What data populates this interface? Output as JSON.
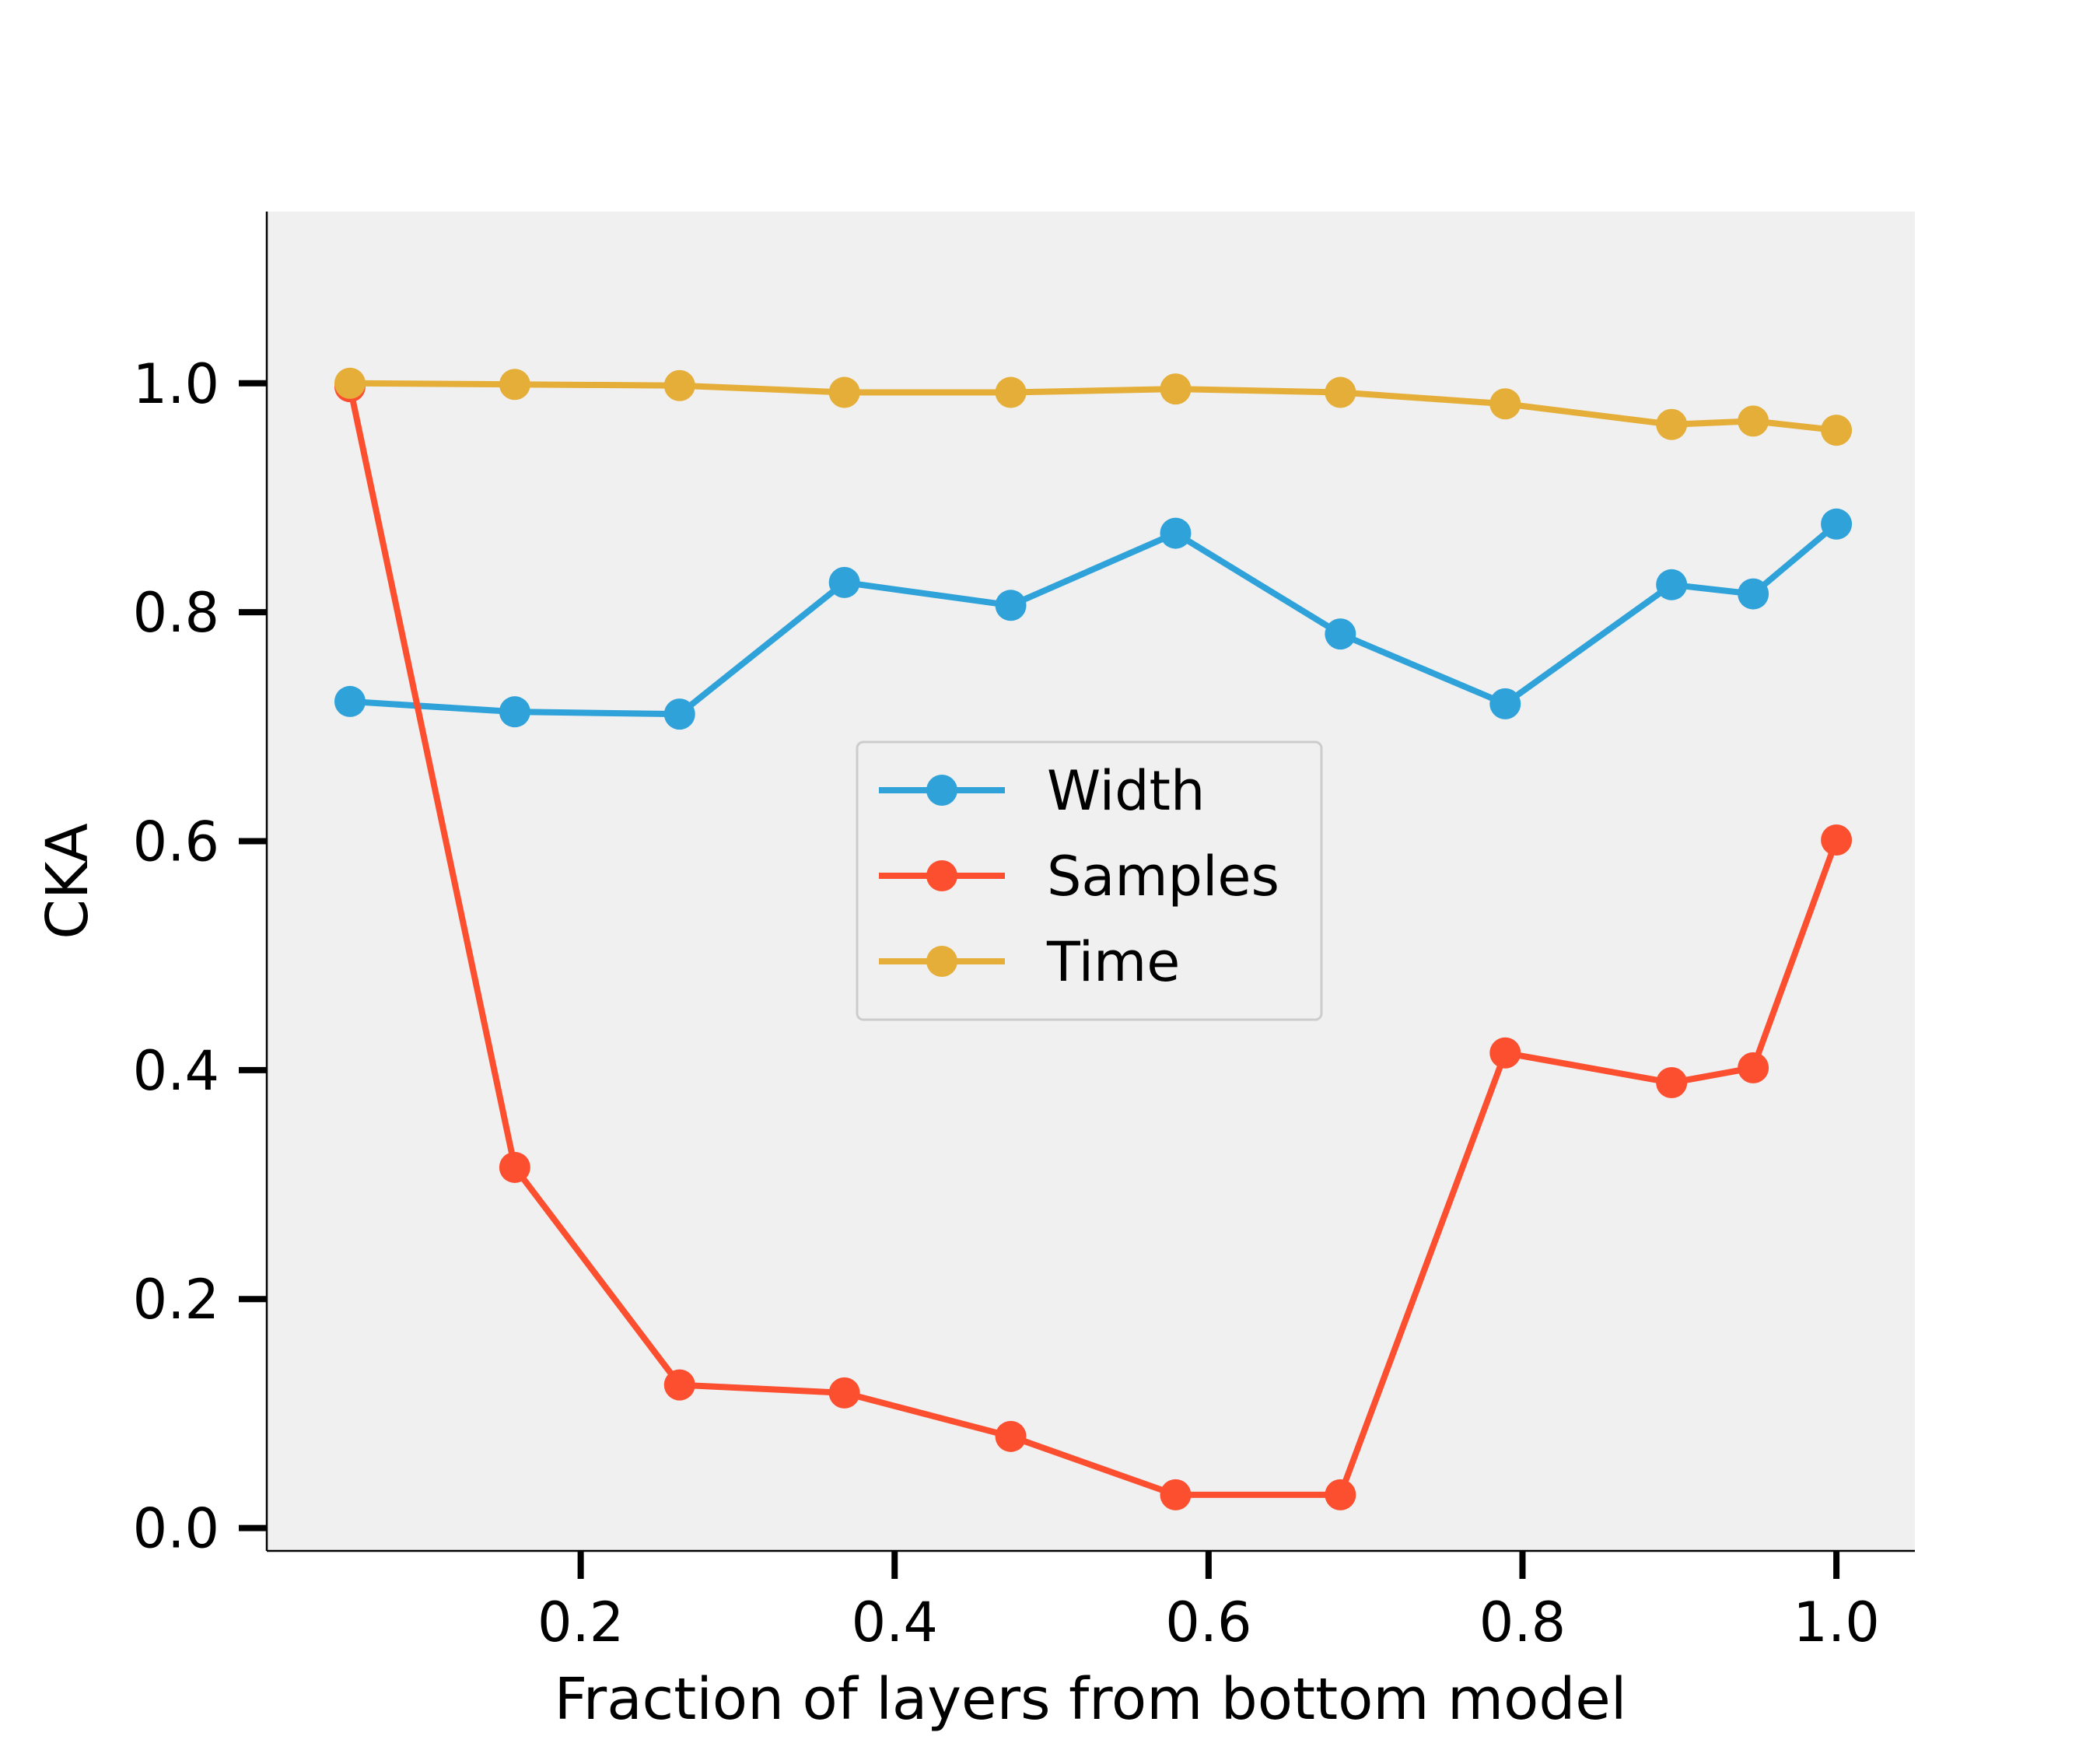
{
  "chart_data": {
    "type": "line",
    "title": "",
    "xlabel": "Fraction of layers from bottom model",
    "ylabel": "CKA",
    "xlim": [
      0.0,
      1.05
    ],
    "ylim": [
      -0.02,
      1.15
    ],
    "xticks": [
      {
        "value": 0.2,
        "label": "0.2"
      },
      {
        "value": 0.4,
        "label": "0.4"
      },
      {
        "value": 0.6,
        "label": "0.6"
      },
      {
        "value": 0.8,
        "label": "0.8"
      },
      {
        "value": 1.0,
        "label": "1.0"
      }
    ],
    "yticks": [
      {
        "value": 0.0,
        "label": "0.0"
      },
      {
        "value": 0.2,
        "label": "0.2"
      },
      {
        "value": 0.4,
        "label": "0.4"
      },
      {
        "value": 0.6,
        "label": "0.6"
      },
      {
        "value": 0.8,
        "label": "0.8"
      },
      {
        "value": 1.0,
        "label": "1.0"
      }
    ],
    "x": [
      0.053,
      0.158,
      0.263,
      0.368,
      0.474,
      0.579,
      0.684,
      0.789,
      0.895,
      0.947,
      1.0
    ],
    "series": [
      {
        "name": "Width",
        "color": "#30a2da",
        "values": [
          0.722,
          0.713,
          0.711,
          0.826,
          0.806,
          0.869,
          0.781,
          0.72,
          0.824,
          0.816,
          0.877
        ]
      },
      {
        "name": "Samples",
        "color": "#fc4f30",
        "values": [
          0.997,
          0.315,
          0.125,
          0.118,
          0.08,
          0.029,
          0.029,
          0.415,
          0.389,
          0.402,
          0.601
        ]
      },
      {
        "name": "Time",
        "color": "#e5ae38",
        "values": [
          1.0,
          0.999,
          0.998,
          0.992,
          0.992,
          0.995,
          0.992,
          0.982,
          0.964,
          0.967,
          0.959
        ]
      }
    ],
    "grid": false,
    "background": "#f0f0f0",
    "legend_position": "center"
  }
}
